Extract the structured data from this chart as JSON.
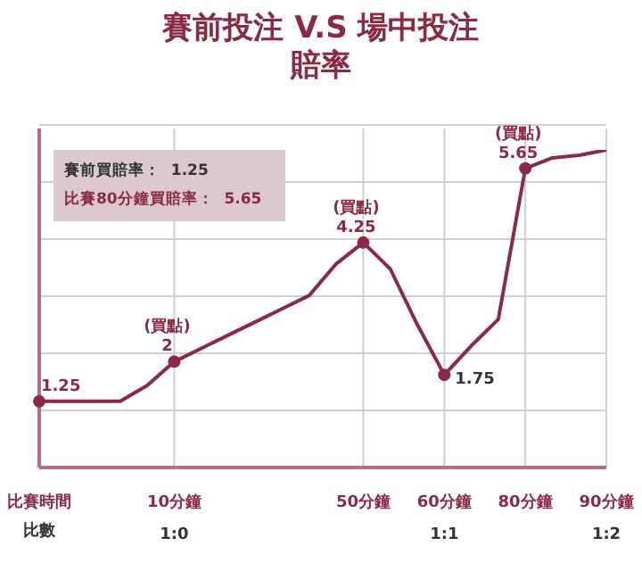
{
  "chart_data": {
    "type": "line",
    "title": "賽前投注 V.S 場中投注賠率",
    "categories": [
      "比賽時間",
      null,
      null,
      null,
      null,
      "10分鐘\n1:0",
      null,
      null,
      null,
      null,
      null,
      null,
      "50分鐘",
      null,
      null,
      "60分鐘\n1:1",
      null,
      null,
      "80分鐘",
      null,
      null,
      "90分鐘\n1:2"
    ],
    "series": [
      {
        "color": "#8b2a45",
        "values": [
          1.25,
          1.25,
          1.25,
          1.25,
          1.55,
          2,
          2.25,
          2.5,
          2.75,
          3.0,
          3.25,
          3.85,
          4.25,
          3.75,
          2.7,
          1.75,
          2.3,
          2.8,
          5.65,
          5.85,
          5.9,
          6.0
        ],
        "value_labels": [
          "1.25",
          null,
          null,
          null,
          null,
          "(買點)\n2",
          null,
          null,
          null,
          null,
          null,
          null,
          "(買點)\n4.25",
          null,
          null,
          "1.75",
          null,
          null,
          "(買點)\n5.65",
          null,
          null,
          null
        ]
      }
    ],
    "tick_labels": "x",
    "grid": true,
    "annotations": [
      "賽前買賠率：  1.25",
      "比賽80分鐘買賠率：  5.65",
      "比數"
    ]
  }
}
